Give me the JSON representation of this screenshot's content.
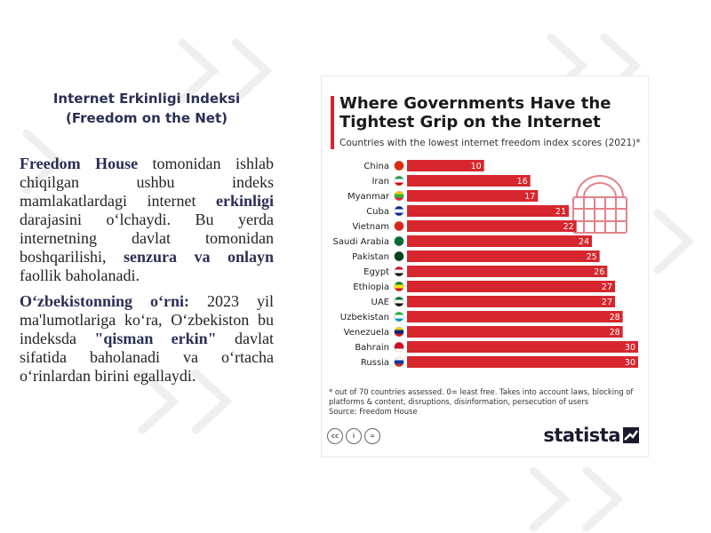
{
  "left_panel": {
    "heading_line1": "Internet Erkinligi Indeksi",
    "heading_line2": "(Freedom on the Net)",
    "p1": {
      "bold1": "Freedom House",
      "text1": " tomonidan ishlab chiqilgan ushbu indeks mamlakatlardagi internet ",
      "bold2": "erkinligi",
      "text2": " darajasini o‘lchaydi. Bu yerda internetning davlat tomonidan boshqarilishi, ",
      "bold3": "senzura va onlayn",
      "text3": " faollik baholanadi."
    },
    "p2": {
      "bold1": "O‘zbekistonning o‘rni:",
      "text1": " 2023 yil ma'lumotlariga ko‘ra, O‘zbekiston bu indeksda ",
      "bold2": "\"qisman erkin\"",
      "text2": " davlat sifatida baholanadi va o‘rtacha o‘rinlardan birini egallaydi."
    }
  },
  "card": {
    "footnote": "* out of 70 countries assessed. 0= least free. Takes into account laws, blocking of platforms & content, disruptions, disinformation, persecution of users",
    "source": "Source: Freedom House",
    "brand": "statista",
    "license_icons": [
      "cc",
      "i",
      "="
    ]
  },
  "colors": {
    "bar": "#d7262e",
    "accent": "#d7262e",
    "bg_deco": "#f0f0f0"
  },
  "chart_data": {
    "type": "bar",
    "orientation": "horizontal",
    "title": "Where Governments Have the Tightest Grip on the Internet",
    "subtitle": "Countries with the lowest internet freedom index scores (2021)*",
    "categories": [
      "China",
      "Iran",
      "Myanmar",
      "Cuba",
      "Vietnam",
      "Saudi Arabia",
      "Pakistan",
      "Egypt",
      "Ethiopia",
      "UAE",
      "Uzbekistan",
      "Venezuela",
      "Bahrain",
      "Russia"
    ],
    "values": [
      10,
      16,
      17,
      21,
      22,
      24,
      25,
      26,
      27,
      27,
      28,
      28,
      30,
      30
    ],
    "xlim": [
      0,
      30
    ],
    "flag_colors": [
      [
        "#de2910",
        "#de2910",
        "#de2910"
      ],
      [
        "#239f40",
        "#ffffff",
        "#da0000"
      ],
      [
        "#fecb00",
        "#34b233",
        "#ea2839"
      ],
      [
        "#002a8f",
        "#ffffff",
        "#002a8f"
      ],
      [
        "#da251d",
        "#da251d",
        "#da251d"
      ],
      [
        "#006c35",
        "#006c35",
        "#006c35"
      ],
      [
        "#01411c",
        "#01411c",
        "#01411c"
      ],
      [
        "#ce1126",
        "#ffffff",
        "#000000"
      ],
      [
        "#078930",
        "#fcdd09",
        "#da121a"
      ],
      [
        "#00732f",
        "#ffffff",
        "#000000"
      ],
      [
        "#1eb53a",
        "#ffffff",
        "#0099b5"
      ],
      [
        "#ffcc00",
        "#00247d",
        "#cf142b"
      ],
      [
        "#ce1126",
        "#ce1126",
        "#ffffff"
      ],
      [
        "#ffffff",
        "#0039a6",
        "#d52b1e"
      ]
    ]
  }
}
